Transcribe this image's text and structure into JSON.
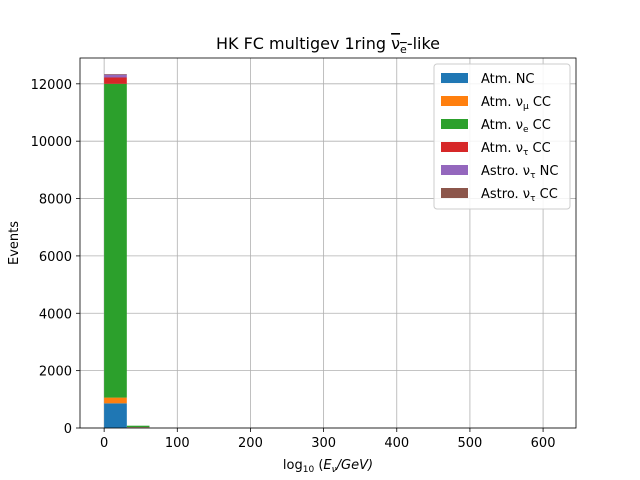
{
  "chart_data": {
    "type": "bar",
    "stacked": true,
    "title": "HK FC multigev 1ring νe-like",
    "title_parts": {
      "prefix": "HK FC multigev 1ring ",
      "symbol": "ν",
      "subscript": "e",
      "suffix": "-like"
    },
    "xlabel": "log10 (Eν/GeV)",
    "xlabel_parts": {
      "func": "log",
      "func_sub": "10",
      "open": " (",
      "var": "E",
      "var_sub": "ν",
      "rest": "/GeV)"
    },
    "ylabel": "Events",
    "xlim": [
      -33,
      645
    ],
    "ylim": [
      0,
      12900
    ],
    "xticks": [
      0,
      100,
      200,
      300,
      400,
      500,
      600
    ],
    "yticks": [
      0,
      2000,
      4000,
      6000,
      8000,
      10000,
      12000
    ],
    "grid": true,
    "legend_position": "top-right",
    "bin_edges": [
      0,
      31,
      62
    ],
    "series": [
      {
        "name": "Atm. NC",
        "label": {
          "text": "Atm. NC"
        },
        "color": "#1f77b4",
        "values": [
          860,
          25
        ]
      },
      {
        "name": "Atm. νμ CC",
        "label": {
          "text": "Atm. ν",
          "sub": "μ",
          "rest": " CC"
        },
        "color": "#ff7f0e",
        "values": [
          200,
          10
        ]
      },
      {
        "name": "Atm. νe CC",
        "label": {
          "text": "Atm. ν",
          "sub": "e",
          "rest": " CC"
        },
        "color": "#2ca02c",
        "values": [
          10940,
          45
        ]
      },
      {
        "name": "Atm. ντ CC",
        "label": {
          "text": "Atm. ν",
          "sub": "τ",
          "rest": " CC"
        },
        "color": "#d62728",
        "values": [
          220,
          0
        ]
      },
      {
        "name": "Astro. ντ NC",
        "label": {
          "text": "Astro. ν",
          "sub": "τ",
          "rest": " NC"
        },
        "color": "#9467bd",
        "values": [
          100,
          0
        ]
      },
      {
        "name": "Astro. ντ CC",
        "label": {
          "text": "Astro. ν",
          "sub": "τ",
          "rest": " CC"
        },
        "color": "#8c564b",
        "values": [
          20,
          0
        ]
      }
    ]
  }
}
